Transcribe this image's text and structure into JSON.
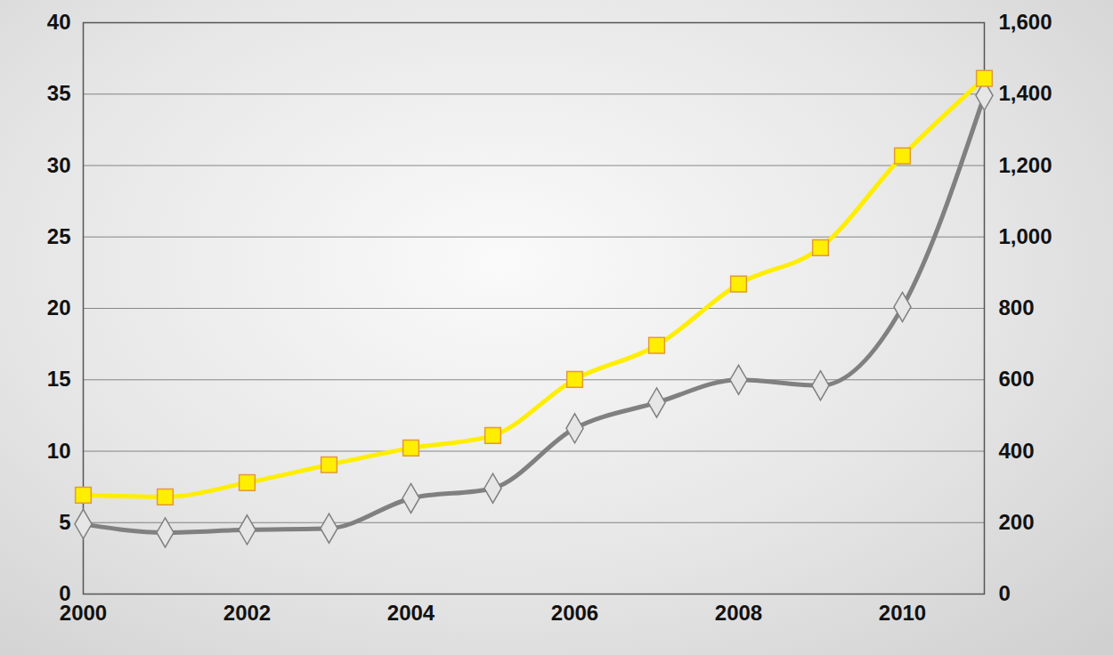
{
  "chart_data": {
    "type": "line",
    "x": [
      2000,
      2001,
      2002,
      2003,
      2004,
      2005,
      2006,
      2007,
      2008,
      2009,
      2010,
      2011
    ],
    "xlim": [
      2000,
      2011
    ],
    "xticks": [
      2000,
      2002,
      2004,
      2006,
      2008,
      2010
    ],
    "ylim": [
      0,
      40
    ],
    "yticks": [
      0,
      5,
      10,
      15,
      20,
      25,
      30,
      35,
      40
    ],
    "y2lim": [
      0,
      1600
    ],
    "y2ticks": [
      0,
      200,
      400,
      600,
      800,
      {
        "value": 1000,
        "label": "1,000"
      },
      {
        "value": 1200,
        "label": "1,200"
      },
      {
        "value": 1400,
        "label": "1,400"
      },
      {
        "value": 1600,
        "label": "1,600"
      }
    ],
    "grid": true,
    "series": [
      {
        "color": "#808080",
        "marker": "diamond",
        "line_style": "solid",
        "values": [
          4.9,
          4.3,
          4.5,
          4.6,
          6.7,
          7.4,
          11.6,
          13.4,
          15.0,
          14.6,
          20.1,
          34.9
        ]
      },
      {
        "color": "#ffee00",
        "marker": "square",
        "line_style": "solid",
        "axis": "y2",
        "values": [
          277,
          272,
          312,
          362,
          409,
          444,
          601,
          696,
          868,
          970,
          1227,
          1444
        ]
      }
    ]
  }
}
